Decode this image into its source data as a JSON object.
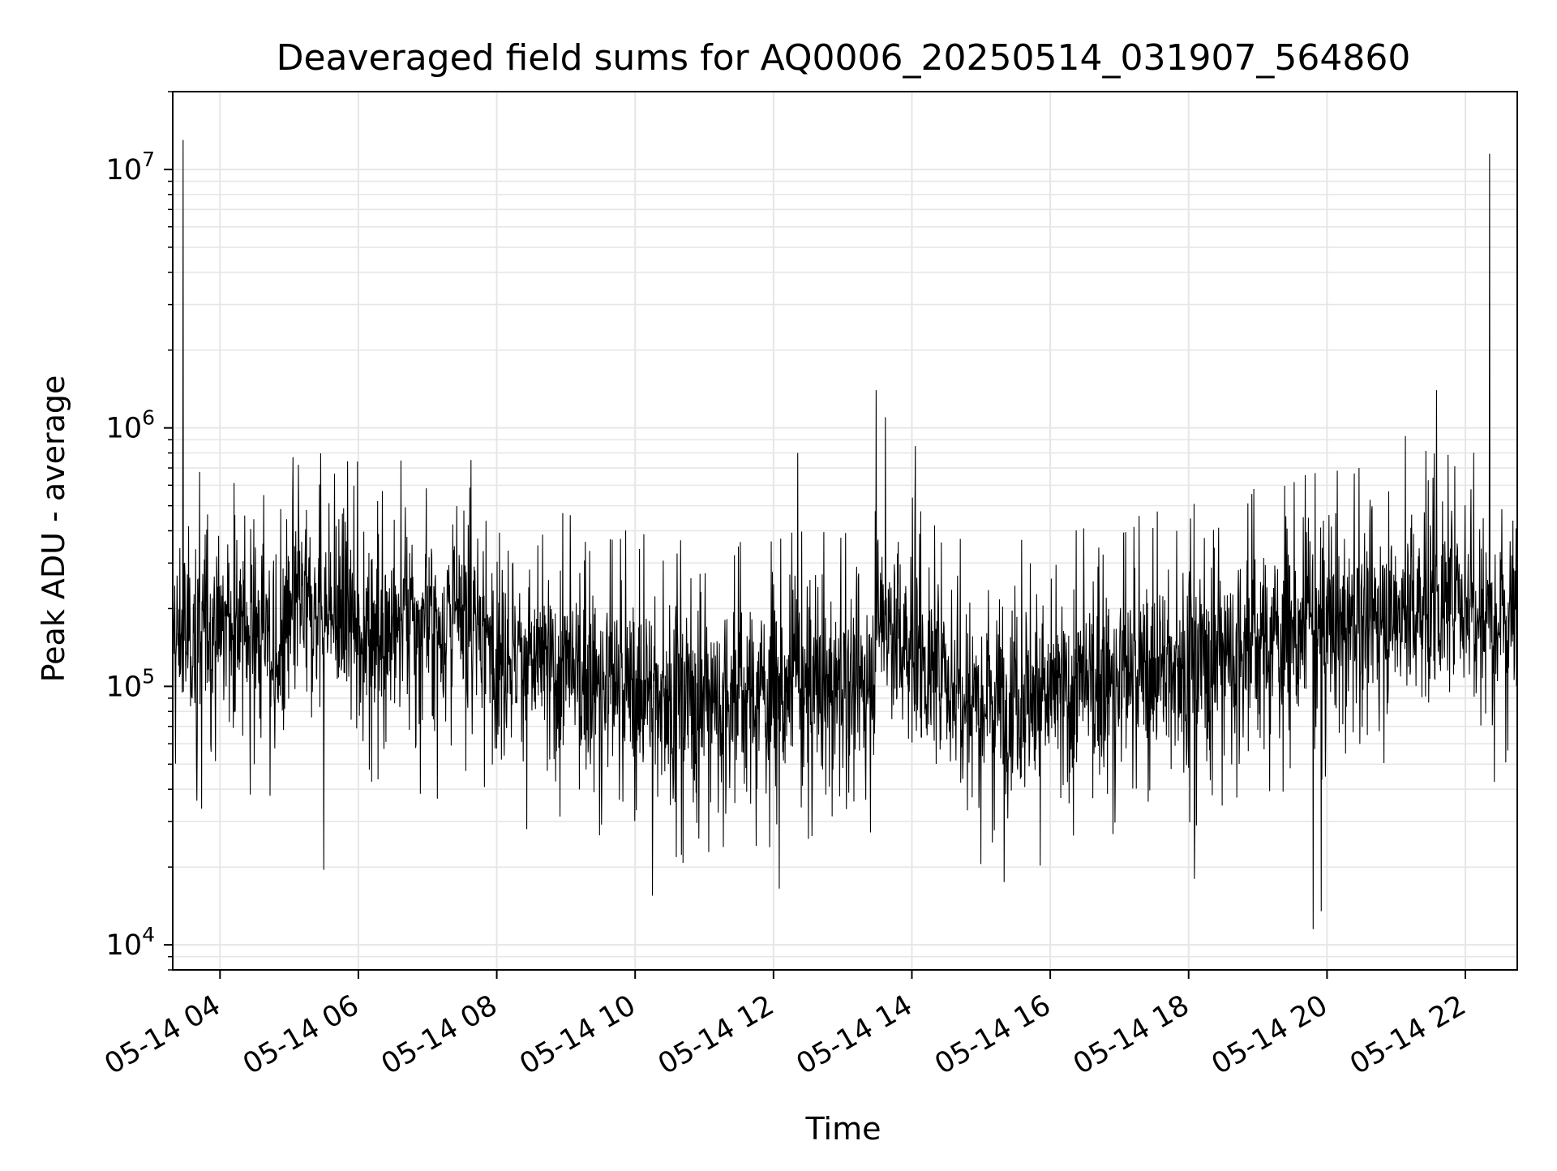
{
  "chart_data": {
    "type": "line",
    "title": "Deaveraged field sums for AQ0006_20250514_031907_564860",
    "xlabel": "Time",
    "ylabel": "Peak ADU - average",
    "yscale": "log",
    "ylim": [
      8000,
      20000000
    ],
    "xlim": [
      "2025-05-14 03:19",
      "2025-05-14 22:45"
    ],
    "grid": true,
    "line_color": "#000000",
    "grid_color": "#e6e6e6",
    "x_ticks": [
      {
        "value": "2025-05-14 04:00",
        "label": "05-14 04"
      },
      {
        "value": "2025-05-14 06:00",
        "label": "05-14 06"
      },
      {
        "value": "2025-05-14 08:00",
        "label": "05-14 08"
      },
      {
        "value": "2025-05-14 10:00",
        "label": "05-14 10"
      },
      {
        "value": "2025-05-14 12:00",
        "label": "05-14 12"
      },
      {
        "value": "2025-05-14 14:00",
        "label": "05-14 14"
      },
      {
        "value": "2025-05-14 16:00",
        "label": "05-14 16"
      },
      {
        "value": "2025-05-14 18:00",
        "label": "05-14 18"
      },
      {
        "value": "2025-05-14 20:00",
        "label": "05-14 20"
      },
      {
        "value": "2025-05-14 22:00",
        "label": "05-14 22"
      }
    ],
    "y_ticks": [
      {
        "value": 10000,
        "base": "10",
        "exp": "4"
      },
      {
        "value": 100000,
        "base": "10",
        "exp": "5"
      },
      {
        "value": 1000000,
        "base": "10",
        "exp": "6"
      },
      {
        "value": 10000000,
        "base": "10",
        "exp": "7"
      }
    ],
    "series": [
      {
        "baseline": [
          [
            "2025-05-14 03:19",
            150000
          ],
          [
            "2025-05-14 04:00",
            170000
          ],
          [
            "2025-05-14 04:40",
            165000
          ],
          [
            "2025-05-14 04:50",
            110000
          ],
          [
            "2025-05-14 05:05",
            200000
          ],
          [
            "2025-05-14 06:00",
            170000
          ],
          [
            "2025-05-14 07:45",
            175000
          ],
          [
            "2025-05-14 08:00",
            140000
          ],
          [
            "2025-05-14 09:00",
            110000
          ],
          [
            "2025-05-14 10:00",
            95000
          ],
          [
            "2025-05-14 11:00",
            90000
          ],
          [
            "2025-05-14 12:00",
            95000
          ],
          [
            "2025-05-14 13:25",
            100000
          ],
          [
            "2025-05-14 13:30",
            200000
          ],
          [
            "2025-05-14 13:50",
            150000
          ],
          [
            "2025-05-14 14:10",
            120000
          ],
          [
            "2025-05-14 14:40",
            100000
          ],
          [
            "2025-05-14 16:00",
            90000
          ],
          [
            "2025-05-14 17:00",
            105000
          ],
          [
            "2025-05-14 18:00",
            125000
          ],
          [
            "2025-05-14 19:00",
            150000
          ],
          [
            "2025-05-14 20:00",
            165000
          ],
          [
            "2025-05-14 21:00",
            190000
          ],
          [
            "2025-05-14 22:00",
            220000
          ],
          [
            "2025-05-14 22:45",
            190000
          ]
        ],
        "peaks": [
          [
            "2025-05-14 03:28",
            13000000
          ],
          [
            "2025-05-14 05:08",
            720000
          ],
          [
            "2025-05-14 12:21",
            800000
          ],
          [
            "2025-05-14 13:29",
            1400000
          ],
          [
            "2025-05-14 13:37",
            1100000
          ],
          [
            "2025-05-14 14:03",
            850000
          ],
          [
            "2025-05-14 21:08",
            930000
          ],
          [
            "2025-05-14 21:35",
            1400000
          ],
          [
            "2025-05-14 22:21",
            11500000
          ]
        ],
        "dips": [
          [
            "2025-05-14 05:30",
            19500
          ],
          [
            "2025-05-14 10:15",
            15500
          ],
          [
            "2025-05-14 12:05",
            16500
          ],
          [
            "2025-05-14 15:20",
            17500
          ],
          [
            "2025-05-14 18:05",
            18000
          ],
          [
            "2025-05-14 19:48",
            11500
          ],
          [
            "2025-05-14 19:55",
            13500
          ]
        ]
      }
    ]
  }
}
